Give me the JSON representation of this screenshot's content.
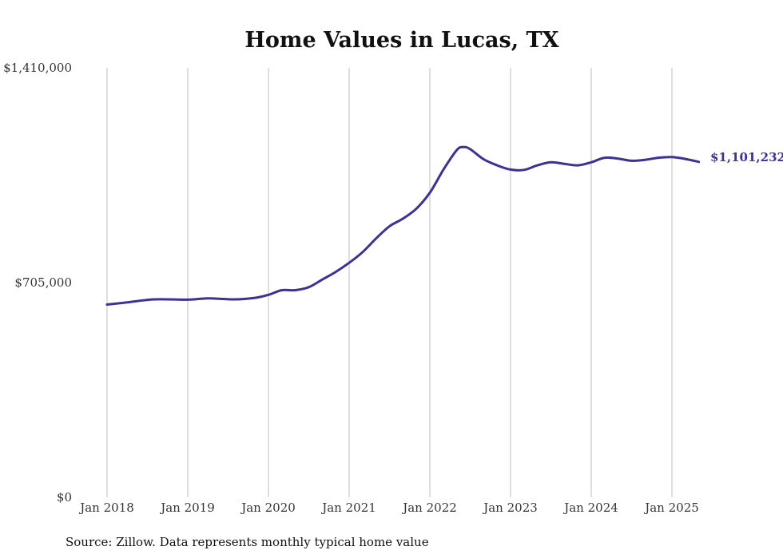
{
  "chart_data": {
    "type": "line",
    "title": "Home Values in Lucas, TX",
    "source": "Source: Zillow. Data represents monthly typical home value",
    "ylim": [
      0,
      1410000
    ],
    "y_ticks": [
      {
        "value": 0,
        "label": "$0"
      },
      {
        "value": 705000,
        "label": "$705,000"
      },
      {
        "value": 1410000,
        "label": "$1,410,000"
      }
    ],
    "x_ticks": [
      {
        "value": "2018-01",
        "label": "Jan 2018"
      },
      {
        "value": "2019-01",
        "label": "Jan 2019"
      },
      {
        "value": "2020-01",
        "label": "Jan 2020"
      },
      {
        "value": "2021-01",
        "label": "Jan 2021"
      },
      {
        "value": "2022-01",
        "label": "Jan 2022"
      },
      {
        "value": "2023-01",
        "label": "Jan 2023"
      },
      {
        "value": "2024-01",
        "label": "Jan 2024"
      },
      {
        "value": "2025-01",
        "label": "Jan 2025"
      }
    ],
    "x_range": [
      "2018-01",
      "2025-05"
    ],
    "grid": {
      "vertical": true,
      "horizontal": false
    },
    "line_color": "#3a3391",
    "series": [
      {
        "x": [
          "2018-01",
          "2018-04",
          "2018-08",
          "2019-01",
          "2019-04",
          "2019-08",
          "2019-11",
          "2020-01",
          "2020-03",
          "2020-05",
          "2020-07",
          "2020-09",
          "2020-11",
          "2021-01",
          "2021-03",
          "2021-05",
          "2021-07",
          "2021-09",
          "2021-11",
          "2022-01",
          "2022-03",
          "2022-05",
          "2022-06",
          "2022-07",
          "2022-09",
          "2022-11",
          "2023-01",
          "2023-03",
          "2023-05",
          "2023-07",
          "2023-09",
          "2023-11",
          "2024-01",
          "2024-03",
          "2024-05",
          "2024-07",
          "2024-09",
          "2024-11",
          "2025-01",
          "2025-03",
          "2025-05"
        ],
        "values": [
          633000,
          640000,
          650000,
          649000,
          653000,
          650000,
          655000,
          665000,
          680000,
          680000,
          690000,
          715000,
          740000,
          770000,
          805000,
          850000,
          890000,
          915000,
          948000,
          1000000,
          1075000,
          1140000,
          1150000,
          1143000,
          1110000,
          1090000,
          1076000,
          1075000,
          1090000,
          1100000,
          1095000,
          1090000,
          1100000,
          1115000,
          1112000,
          1105000,
          1108000,
          1115000,
          1117000,
          1111000,
          1101232
        ]
      }
    ],
    "end_label": "$1,101,232"
  }
}
